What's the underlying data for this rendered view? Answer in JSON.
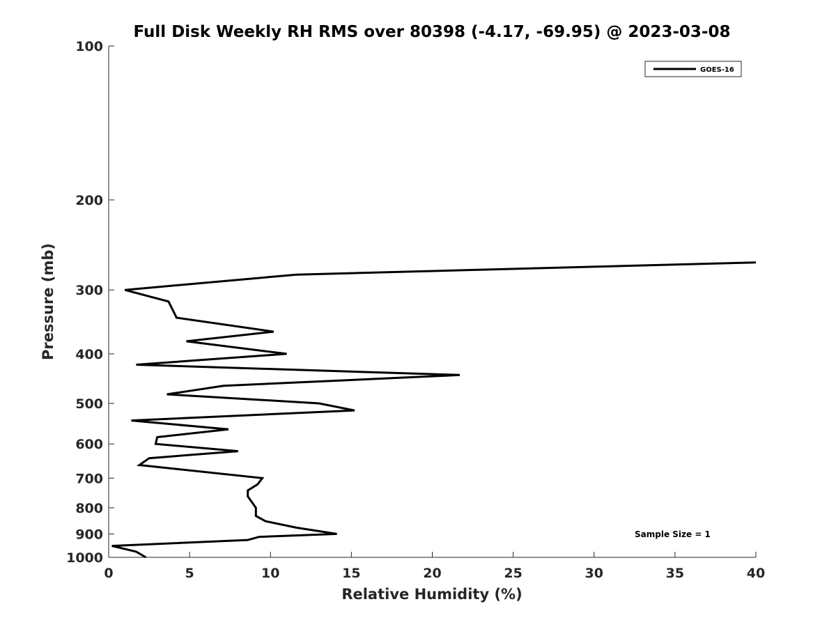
{
  "chart_data": {
    "type": "line",
    "title": "Full Disk Weekly RH RMS over 80398 (-4.17, -69.95) @ 2023-03-08",
    "xlabel": "Relative Humidity (%)",
    "ylabel": "Pressure (mb)",
    "xlim": [
      0,
      40
    ],
    "ylim": [
      1000,
      100
    ],
    "yscale": "log",
    "y_reversed": true,
    "x_ticks": [
      "0",
      "5",
      "10",
      "15",
      "20",
      "25",
      "30",
      "35",
      "40"
    ],
    "y_ticks": [
      "100",
      "200",
      "300",
      "400",
      "500",
      "600",
      "700",
      "800",
      "900",
      "1000"
    ],
    "grid": false,
    "legend_position": "top-right",
    "series": [
      {
        "name": "GOES-16",
        "color": "#000000",
        "points": [
          {
            "x": 40.0,
            "y": 265
          },
          {
            "x": 11.6,
            "y": 280
          },
          {
            "x": 1.0,
            "y": 300
          },
          {
            "x": 3.7,
            "y": 316
          },
          {
            "x": 4.2,
            "y": 340
          },
          {
            "x": 10.2,
            "y": 362
          },
          {
            "x": 4.8,
            "y": 378
          },
          {
            "x": 11.0,
            "y": 400
          },
          {
            "x": 1.7,
            "y": 420
          },
          {
            "x": 21.7,
            "y": 440
          },
          {
            "x": 7.1,
            "y": 462
          },
          {
            "x": 3.6,
            "y": 480
          },
          {
            "x": 13.0,
            "y": 500
          },
          {
            "x": 15.2,
            "y": 516
          },
          {
            "x": 1.4,
            "y": 540
          },
          {
            "x": 7.4,
            "y": 562
          },
          {
            "x": 3.0,
            "y": 582
          },
          {
            "x": 2.9,
            "y": 600
          },
          {
            "x": 8.0,
            "y": 620
          },
          {
            "x": 2.5,
            "y": 640
          },
          {
            "x": 1.9,
            "y": 660
          },
          {
            "x": 9.5,
            "y": 700
          },
          {
            "x": 9.2,
            "y": 720
          },
          {
            "x": 8.6,
            "y": 740
          },
          {
            "x": 8.6,
            "y": 760
          },
          {
            "x": 9.1,
            "y": 800
          },
          {
            "x": 9.1,
            "y": 830
          },
          {
            "x": 9.7,
            "y": 850
          },
          {
            "x": 11.6,
            "y": 875
          },
          {
            "x": 14.1,
            "y": 900
          },
          {
            "x": 9.3,
            "y": 912
          },
          {
            "x": 8.6,
            "y": 925
          },
          {
            "x": 0.2,
            "y": 950
          },
          {
            "x": 1.7,
            "y": 975
          },
          {
            "x": 2.3,
            "y": 1000
          }
        ]
      }
    ],
    "annotations": [
      {
        "text": "Sample Size = 1",
        "position": "bottom-right"
      }
    ]
  }
}
